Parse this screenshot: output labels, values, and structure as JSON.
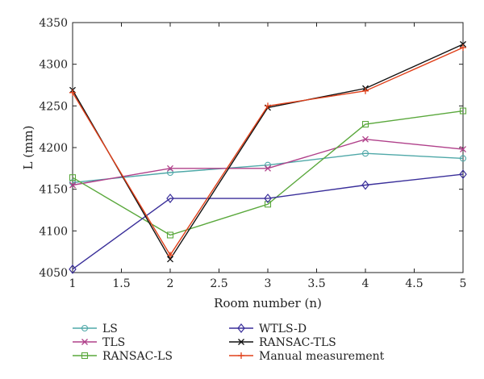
{
  "chart_data": {
    "type": "line",
    "xlabel": "Room number (n)",
    "ylabel": "L (mm)",
    "xlim": [
      1,
      5
    ],
    "ylim": [
      4050,
      4350
    ],
    "xticks": [
      "1",
      "1.5",
      "2",
      "2.5",
      "3",
      "3.5",
      "4",
      "4.5",
      "5"
    ],
    "yticks": [
      "4050",
      "4100",
      "4150",
      "4200",
      "4250",
      "4300",
      "4350"
    ],
    "grid": false,
    "legend_position": "bottom",
    "x": [
      1,
      2,
      3,
      4,
      5
    ],
    "series": [
      {
        "name": "LS",
        "color": "#4fa8a8",
        "marker": "circle",
        "values": [
          4158,
          4170,
          4179,
          4193,
          4187
        ]
      },
      {
        "name": "TLS",
        "color": "#b0408a",
        "marker": "x",
        "values": [
          4155,
          4175,
          4175,
          4210,
          4198
        ]
      },
      {
        "name": "RANSAC-LS",
        "color": "#5aa83c",
        "marker": "square",
        "values": [
          4164,
          4095,
          4132,
          4228,
          4244
        ]
      },
      {
        "name": "WTLS-D",
        "color": "#3a2f9a",
        "marker": "diamond",
        "values": [
          4054,
          4139,
          4139,
          4155,
          4168
        ]
      },
      {
        "name": "RANSAC-TLS",
        "color": "#111111",
        "marker": "x",
        "values": [
          4269,
          4066,
          4248,
          4271,
          4324
        ]
      },
      {
        "name": "Manual measurement",
        "color": "#e0401a",
        "marker": "plus",
        "values": [
          4266,
          4071,
          4250,
          4268,
          4320
        ]
      }
    ]
  }
}
